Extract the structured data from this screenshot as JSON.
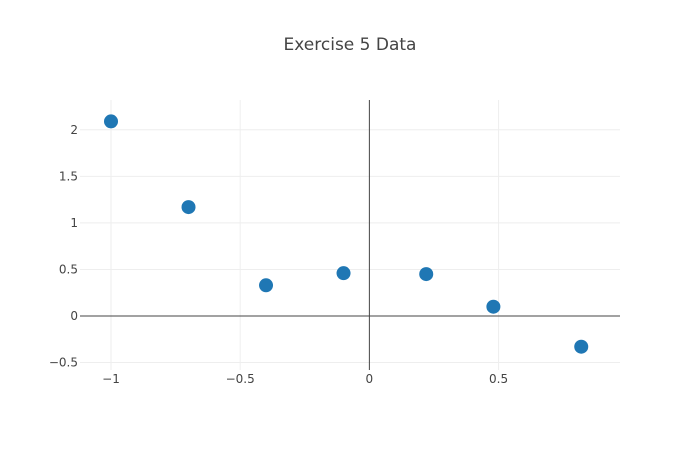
{
  "chart_data": {
    "type": "scatter",
    "title": "Exercise 5 Data",
    "xlabel": "",
    "ylabel": "",
    "xlim": [
      -1.12,
      0.97
    ],
    "ylim": [
      -0.58,
      2.32
    ],
    "xticks": [
      -1,
      -0.5,
      0,
      0.5
    ],
    "xtick_labels": [
      "−1",
      "−0.5",
      "0",
      "0.5"
    ],
    "yticks": [
      -0.5,
      0,
      0.5,
      1,
      1.5,
      2
    ],
    "ytick_labels": [
      "−0.5",
      "0",
      "0.5",
      "1",
      "1.5",
      "2"
    ],
    "grid": true,
    "marker_color": "#1f77b4",
    "series": [
      {
        "x": [
          -1.0,
          -0.7,
          -0.4,
          -0.1,
          0.22,
          0.48,
          0.82
        ],
        "y": [
          2.09,
          1.17,
          0.33,
          0.46,
          0.45,
          0.1,
          -0.33
        ]
      }
    ]
  }
}
